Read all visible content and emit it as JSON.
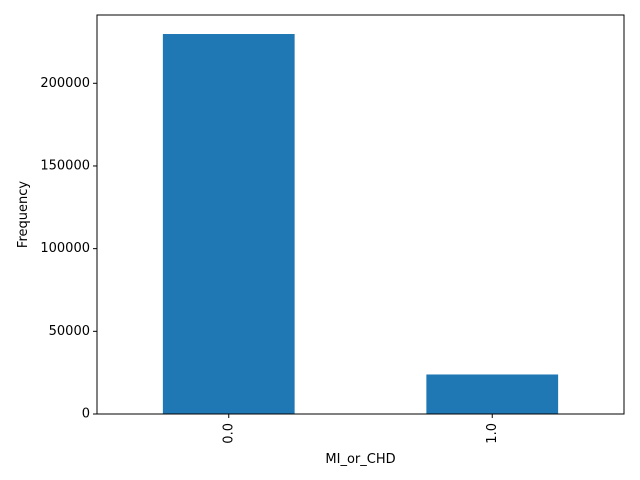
{
  "chart_data": {
    "type": "bar",
    "categories": [
      "0.0",
      "1.0"
    ],
    "values": [
      229800,
      23900
    ],
    "xlabel": "MI_or_CHD",
    "ylabel": "Frequency",
    "ylim": [
      0,
      241300
    ],
    "yticks": [
      0,
      50000,
      100000,
      150000,
      200000
    ],
    "ytick_labels": [
      "0",
      "50000",
      "100000",
      "150000",
      "200000"
    ],
    "xtick_rotation": "vertical",
    "grid": false,
    "legend": "none",
    "colors": {
      "bar": "#1f77b4"
    }
  }
}
